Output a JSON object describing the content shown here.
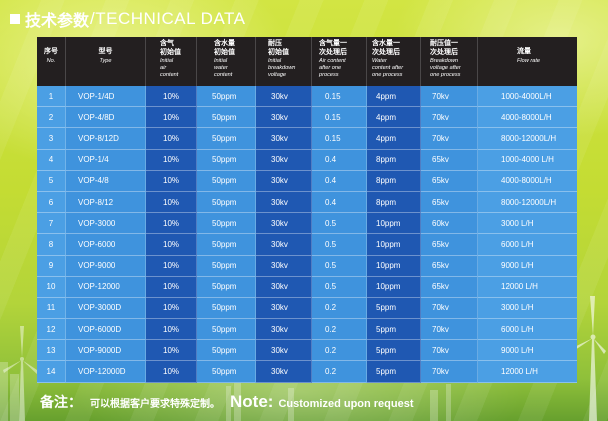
{
  "title": {
    "icon": "square-icon",
    "zh": "技术参数",
    "en": "/TECHNICAL DATA"
  },
  "theme": {
    "header_bg": "#231f20",
    "cell_light": "#3f93dd",
    "cell_lighter": "#4b9fe4",
    "cell_dark": "#1f58b2",
    "text": "#ffffff"
  },
  "table": {
    "headers": [
      {
        "zh": "序号",
        "en": "No."
      },
      {
        "zh": "型号",
        "en": "Type"
      },
      {
        "zh": "含气\n初始值",
        "en": "Initial\nair\ncontent"
      },
      {
        "zh": "含水量\n初始值",
        "en": "Initial\nwater\ncontent"
      },
      {
        "zh": "耐压\n初始值",
        "en": "Initial\nbreakdown\nvoltage"
      },
      {
        "zh": "含气量一\n次处理后",
        "en": "Air content\nafter one\nprocess"
      },
      {
        "zh": "含水量一\n次处理后",
        "en": "Water\ncontent after\none process"
      },
      {
        "zh": "耐压值一\n次处理后",
        "en": "Breakdown\nvoltage after\none process"
      },
      {
        "zh": "流量",
        "en": "Flow rate"
      }
    ],
    "rows": [
      [
        "1",
        "VOP-1/4D",
        "10%",
        "50ppm",
        "30kv",
        "0.15",
        "4ppm",
        "70kv",
        "1000-4000L/H"
      ],
      [
        "2",
        "VOP-4/8D",
        "10%",
        "50ppm",
        "30kv",
        "0.15",
        "4ppm",
        "70kv",
        "4000-8000L/H"
      ],
      [
        "3",
        "VOP-8/12D",
        "10%",
        "50ppm",
        "30kv",
        "0.15",
        "4ppm",
        "70kv",
        "8000-12000L/H"
      ],
      [
        "4",
        "VOP-1/4",
        "10%",
        "50ppm",
        "30kv",
        "0.4",
        "8ppm",
        "65kv",
        "1000-4000 L/H"
      ],
      [
        "5",
        "VOP-4/8",
        "10%",
        "50ppm",
        "30kv",
        "0.4",
        "8ppm",
        "65kv",
        "4000-8000L/H"
      ],
      [
        "6",
        "VOP-8/12",
        "10%",
        "50ppm",
        "30kv",
        "0.4",
        "8ppm",
        "65kv",
        "8000-12000L/H"
      ],
      [
        "7",
        "VOP-3000",
        "10%",
        "50ppm",
        "30kv",
        "0.5",
        "10ppm",
        "60kv",
        "3000 L/H"
      ],
      [
        "8",
        "VOP-6000",
        "10%",
        "50ppm",
        "30kv",
        "0.5",
        "10ppm",
        "65kv",
        "6000 L/H"
      ],
      [
        "9",
        "VOP-9000",
        "10%",
        "50ppm",
        "30kv",
        "0.5",
        "10ppm",
        "65kv",
        "9000 L/H"
      ],
      [
        "10",
        "VOP-12000",
        "10%",
        "50ppm",
        "30kv",
        "0.5",
        "10ppm",
        "65kv",
        "12000 L/H"
      ],
      [
        "11",
        "VOP-3000D",
        "10%",
        "50ppm",
        "30kv",
        "0.2",
        "5ppm",
        "70kv",
        "3000 L/H"
      ],
      [
        "12",
        "VOP-6000D",
        "10%",
        "50ppm",
        "30kv",
        "0.2",
        "5ppm",
        "70kv",
        "6000 L/H"
      ],
      [
        "13",
        "VOP-9000D",
        "10%",
        "50ppm",
        "30kv",
        "0.2",
        "5ppm",
        "70kv",
        "9000 L/H"
      ],
      [
        "14",
        "VOP-12000D",
        "10%",
        "50ppm",
        "30kv",
        "0.2",
        "5ppm",
        "70kv",
        "12000 L/H"
      ]
    ]
  },
  "note": {
    "zh_label": "备注：",
    "zh_text": "可以根据客户要求特殊定制。",
    "en_label": "Note:",
    "en_text": "Customized upon request"
  }
}
